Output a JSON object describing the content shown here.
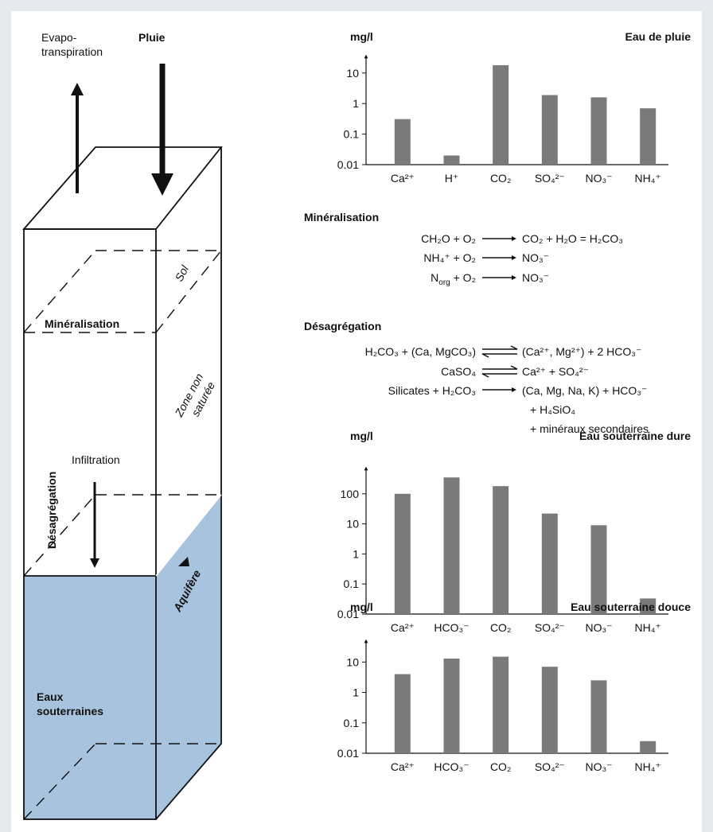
{
  "diagram": {
    "evapo": [
      "Evapo-",
      "transpiration"
    ],
    "pluie": "Pluie",
    "sol": "Sol",
    "mineralisation": "Minéralisation",
    "zone": [
      "Zone non",
      "saturée"
    ],
    "infiltration": "Infiltration",
    "desagregation": "Désagrégation",
    "aquifere": "Aquifère",
    "eaux": [
      "Eaux",
      "souterraines"
    ]
  },
  "mineralisation": {
    "title": "Minéralisation",
    "equations": [
      {
        "left": "CH₂O + O₂",
        "right": "CO₂ + H₂O = H₂CO₃"
      },
      {
        "left": "NH₄⁺ + O₂",
        "right": "NO₃⁻"
      },
      {
        "left": [
          "N",
          "org",
          " + O₂"
        ],
        "right": "NO₃⁻"
      }
    ]
  },
  "desagregation": {
    "title": "Désagrégation",
    "equations": [
      {
        "left": "H₂CO₃ + (Ca, MgCO₃)",
        "right": "(Ca²⁺, Mg²⁺) + 2 HCO₃⁻"
      },
      {
        "left": "CaSO₄",
        "right": "Ca²⁺ + SO₄²⁻"
      },
      {
        "left": "Silicates + H₂CO₃",
        "right": [
          "(Ca, Mg, Na, K) + HCO₃⁻",
          "+ H₄SiO₄",
          "+ minéraux secondaires"
        ]
      }
    ]
  },
  "chart_data": [
    {
      "type": "bar",
      "title": "Eau de pluie",
      "y_label": "mg/l",
      "log_scale": true,
      "color": "#7a7a7a",
      "categories": [
        "Ca²⁺",
        "H⁺",
        "CO₂",
        "SO₄²⁻",
        "NO₃⁻",
        "NH₄⁺"
      ],
      "values": [
        0.31,
        0.02,
        18,
        1.9,
        1.6,
        0.7
      ],
      "ylim": [
        0.01,
        50
      ],
      "yticks": [
        0.01,
        0.1,
        1,
        10
      ]
    },
    {
      "type": "bar",
      "title": "Eau souterraine dure",
      "y_label": "mg/l",
      "log_scale": true,
      "color": "#7a7a7a",
      "categories": [
        "Ca²⁺",
        "HCO₃⁻",
        "CO₂",
        "SO₄²⁻",
        "NO₃⁻",
        "NH₄⁺"
      ],
      "values": [
        100,
        350,
        180,
        22,
        9,
        0.033
      ],
      "ylim": [
        0.01,
        1000
      ],
      "yticks": [
        0.01,
        0.1,
        1,
        10,
        100
      ]
    },
    {
      "type": "bar",
      "title": "Eau souterraine douce",
      "y_label": "mg/l",
      "log_scale": true,
      "color": "#7a7a7a",
      "categories": [
        "Ca²⁺",
        "HCO₃⁻",
        "CO₂",
        "SO₄²⁻",
        "NO₃⁻",
        "NH₄⁺"
      ],
      "values": [
        4,
        13,
        15,
        7,
        2.5,
        0.025
      ],
      "ylim": [
        0.01,
        70
      ],
      "yticks": [
        0.01,
        0.1,
        1,
        10
      ]
    }
  ]
}
